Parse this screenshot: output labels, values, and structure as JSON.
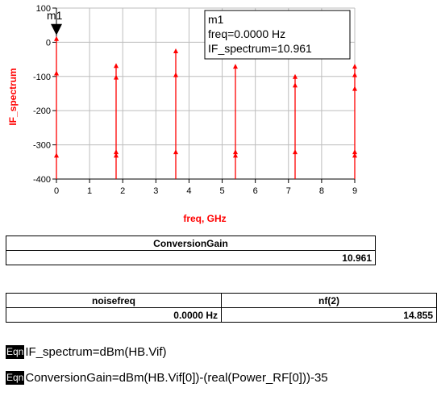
{
  "chart_data": {
    "type": "stem",
    "xlabel": "freq, GHz",
    "ylabel": "IF_spectrum",
    "xlim": [
      0,
      9
    ],
    "ylim": [
      -400,
      100
    ],
    "x_ticks": [
      "0",
      "1",
      "2",
      "3",
      "4",
      "5",
      "6",
      "7",
      "8",
      "9"
    ],
    "y_ticks": [
      "100",
      "0",
      "-100",
      "-200",
      "-300",
      "-400"
    ],
    "grid": true,
    "color": "#ff0000",
    "series": [
      {
        "values": [
          [
            0,
            10.961
          ],
          [
            0,
            -90
          ],
          [
            0,
            -330
          ],
          [
            1.8,
            -68
          ],
          [
            1.8,
            -102
          ],
          [
            1.8,
            -320
          ],
          [
            1.8,
            -330
          ],
          [
            3.6,
            -25
          ],
          [
            3.6,
            -95
          ],
          [
            3.6,
            -320
          ],
          [
            5.4,
            -70
          ],
          [
            5.4,
            -320
          ],
          [
            5.4,
            -330
          ],
          [
            7.2,
            -100
          ],
          [
            7.2,
            -125
          ],
          [
            7.2,
            -320
          ],
          [
            9,
            -70
          ],
          [
            9,
            -95
          ],
          [
            9,
            -135
          ],
          [
            9,
            -320
          ],
          [
            9,
            -330
          ]
        ]
      }
    ],
    "marker": {
      "name": "m1",
      "x": 0,
      "y": 10.961,
      "lines": [
        "m1",
        "freq=0.0000 Hz",
        "IF_spectrum=10.961"
      ]
    }
  },
  "tables": {
    "conversion_gain": {
      "header": "ConversionGain",
      "value": "10.961"
    },
    "noise": {
      "headers": [
        "noisefreq",
        "nf(2)"
      ],
      "values": [
        "0.0000 Hz",
        "14.855"
      ]
    }
  },
  "equations": [
    {
      "badge": "Eqn",
      "text": "IF_spectrum=dBm(HB.Vif)"
    },
    {
      "badge": "Eqn",
      "text": "ConversionGain=dBm(HB.Vif[0])-(real(Power_RF[0]))-35"
    }
  ]
}
